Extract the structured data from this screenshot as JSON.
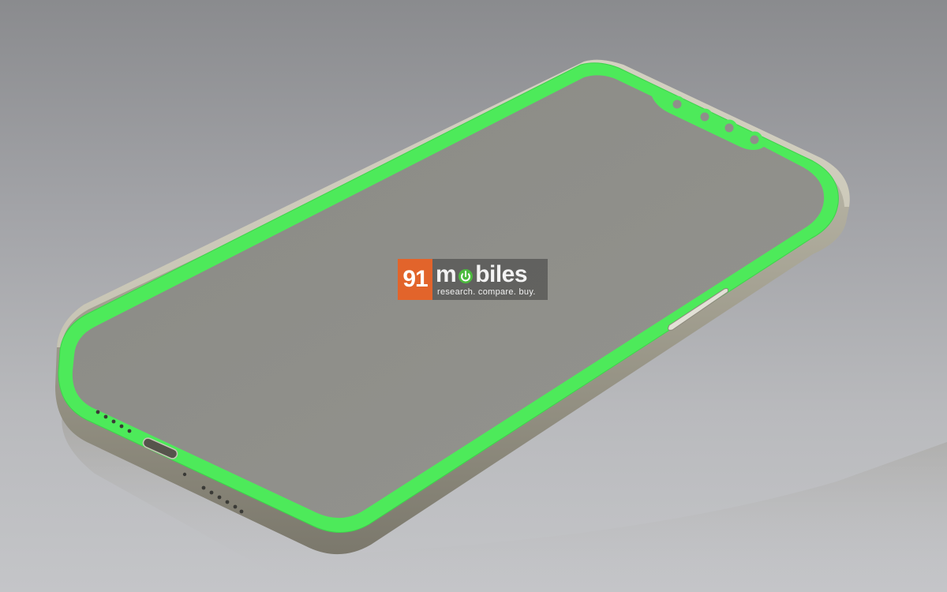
{
  "watermark": {
    "number": "91",
    "name_prefix": "m",
    "name_suffix": "biles",
    "tagline": "research. compare. buy."
  },
  "colors": {
    "display_border": "#4dea5a",
    "screen": "#8f8f8a",
    "frame": "#a8a597",
    "background": "#a5a6aa",
    "logo_accent": "#e2642b"
  },
  "objects": [
    {
      "name": "smartphone",
      "state": "screen off, green outline"
    },
    {
      "name": "notch",
      "cutouts": 4
    },
    {
      "name": "side-button"
    },
    {
      "name": "charging-port"
    },
    {
      "name": "speaker-grille"
    }
  ]
}
